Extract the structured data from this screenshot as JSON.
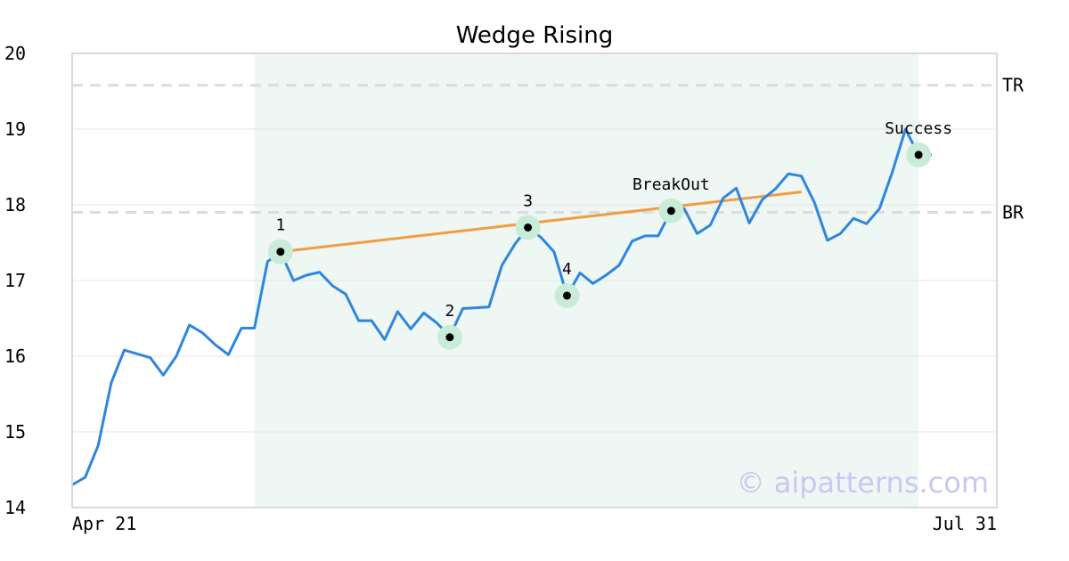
{
  "chart_data": {
    "type": "line",
    "title": "Wedge Rising",
    "xlabel": "",
    "ylabel": "",
    "ylim": [
      14,
      20
    ],
    "y_ticks": [
      "14",
      "15",
      "16",
      "17",
      "18",
      "19",
      "20"
    ],
    "x_tick_labels": [
      "Apr 21",
      "Jul 31"
    ],
    "grid": "horizontal",
    "series": [
      {
        "color": "#2e86de",
        "values": [
          14.3,
          14.4,
          14.82,
          15.65,
          16.08,
          16.03,
          15.98,
          15.75,
          16.0,
          16.41,
          16.31,
          16.15,
          16.02,
          16.37,
          16.37,
          17.25,
          17.38,
          17.0,
          17.07,
          17.11,
          16.93,
          16.82,
          16.47,
          16.47,
          16.22,
          16.59,
          16.36,
          16.57,
          16.44,
          16.26,
          16.63,
          16.64,
          16.65,
          17.2,
          17.48,
          17.7,
          17.57,
          17.38,
          16.8,
          17.1,
          16.96,
          17.07,
          17.2,
          17.52,
          17.59,
          17.59,
          17.92,
          17.95,
          17.62,
          17.73,
          18.09,
          18.22,
          17.76,
          18.07,
          18.21,
          18.41,
          18.38,
          18.03,
          17.53,
          17.62,
          17.82,
          17.75,
          17.95,
          18.44,
          19.0,
          18.66,
          18.66
        ]
      }
    ],
    "shaded_region": {
      "from_index": 14,
      "to_index": 65,
      "color": "#eef7f4"
    },
    "horizontal_lines": [
      {
        "label": "TR",
        "value": 19.58
      },
      {
        "label": "BR",
        "value": 17.9
      }
    ],
    "trend_line": {
      "color": "#f39c42",
      "from": {
        "index": 16,
        "value": 17.38
      },
      "to": {
        "index": 56,
        "value": 18.17
      }
    },
    "points": [
      {
        "label": "1",
        "index": 16,
        "value": 17.38
      },
      {
        "label": "2",
        "index": 29,
        "value": 16.25
      },
      {
        "label": "3",
        "index": 35,
        "value": 17.7
      },
      {
        "label": "4",
        "index": 38,
        "value": 16.8
      },
      {
        "label": "BreakOut",
        "index": 46,
        "value": 17.92
      },
      {
        "label": "Success",
        "index": 65,
        "value": 18.66
      }
    ],
    "marker_ring_color": "#c8ecd8",
    "watermark": "© aipatterns.com"
  }
}
